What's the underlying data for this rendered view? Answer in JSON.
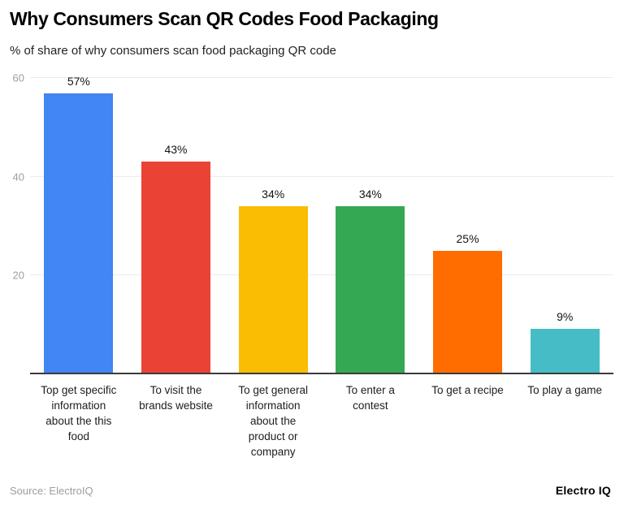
{
  "chart_data": {
    "type": "bar",
    "title": "Why Consumers Scan QR Codes Food Packaging",
    "subtitle": "% of share of why consumers scan food packaging QR code",
    "categories": [
      "Top get specific information about the this food",
      "To visit the brands website",
      "To get general information about the product or company",
      "To enter a contest",
      "To get a recipe",
      "To play a game"
    ],
    "values": [
      57,
      43,
      34,
      34,
      25,
      9
    ],
    "value_labels": [
      "57%",
      "43%",
      "34%",
      "34%",
      "25%",
      "9%"
    ],
    "bar_colors": [
      "#4285F4",
      "#EA4335",
      "#FBBC04",
      "#34A853",
      "#FF6D01",
      "#46BDC6"
    ],
    "yticks": [
      20,
      40,
      60
    ],
    "ylim": [
      0,
      61.4
    ],
    "xlabel": "",
    "ylabel": "",
    "grid": true,
    "legend": false,
    "colors": {
      "y_tick_label": "#9e9e9e",
      "grid_line": "#ececec",
      "baseline": "#3b3b3b",
      "value_label": "#141414",
      "category_label": "#1d1d1d"
    }
  },
  "footer": {
    "source": "Source: ElectroIQ",
    "brand": "Electro IQ"
  }
}
